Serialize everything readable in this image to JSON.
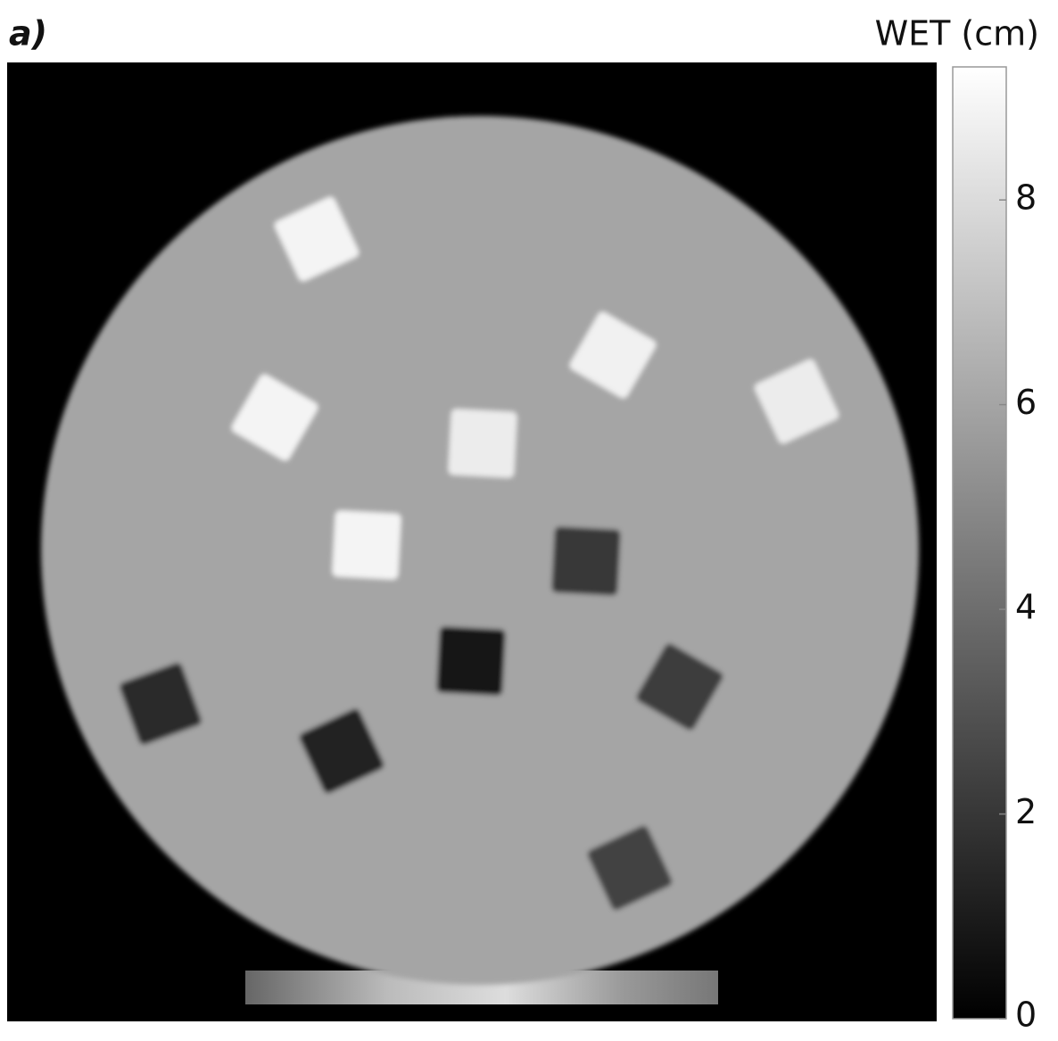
{
  "chart_data": {
    "type": "image",
    "panel_label": "a)",
    "colorbar": {
      "label": "WET (cm)",
      "lim": [
        0,
        9.3
      ],
      "ticks": [
        0,
        2,
        4,
        6,
        8
      ]
    },
    "background_value": 6.0,
    "values": [
      8.9,
      8.8,
      8.6,
      8.9,
      8.6,
      8.9,
      2.0,
      0.9,
      2.2,
      1.6,
      1.3,
      2.4
    ]
  }
}
